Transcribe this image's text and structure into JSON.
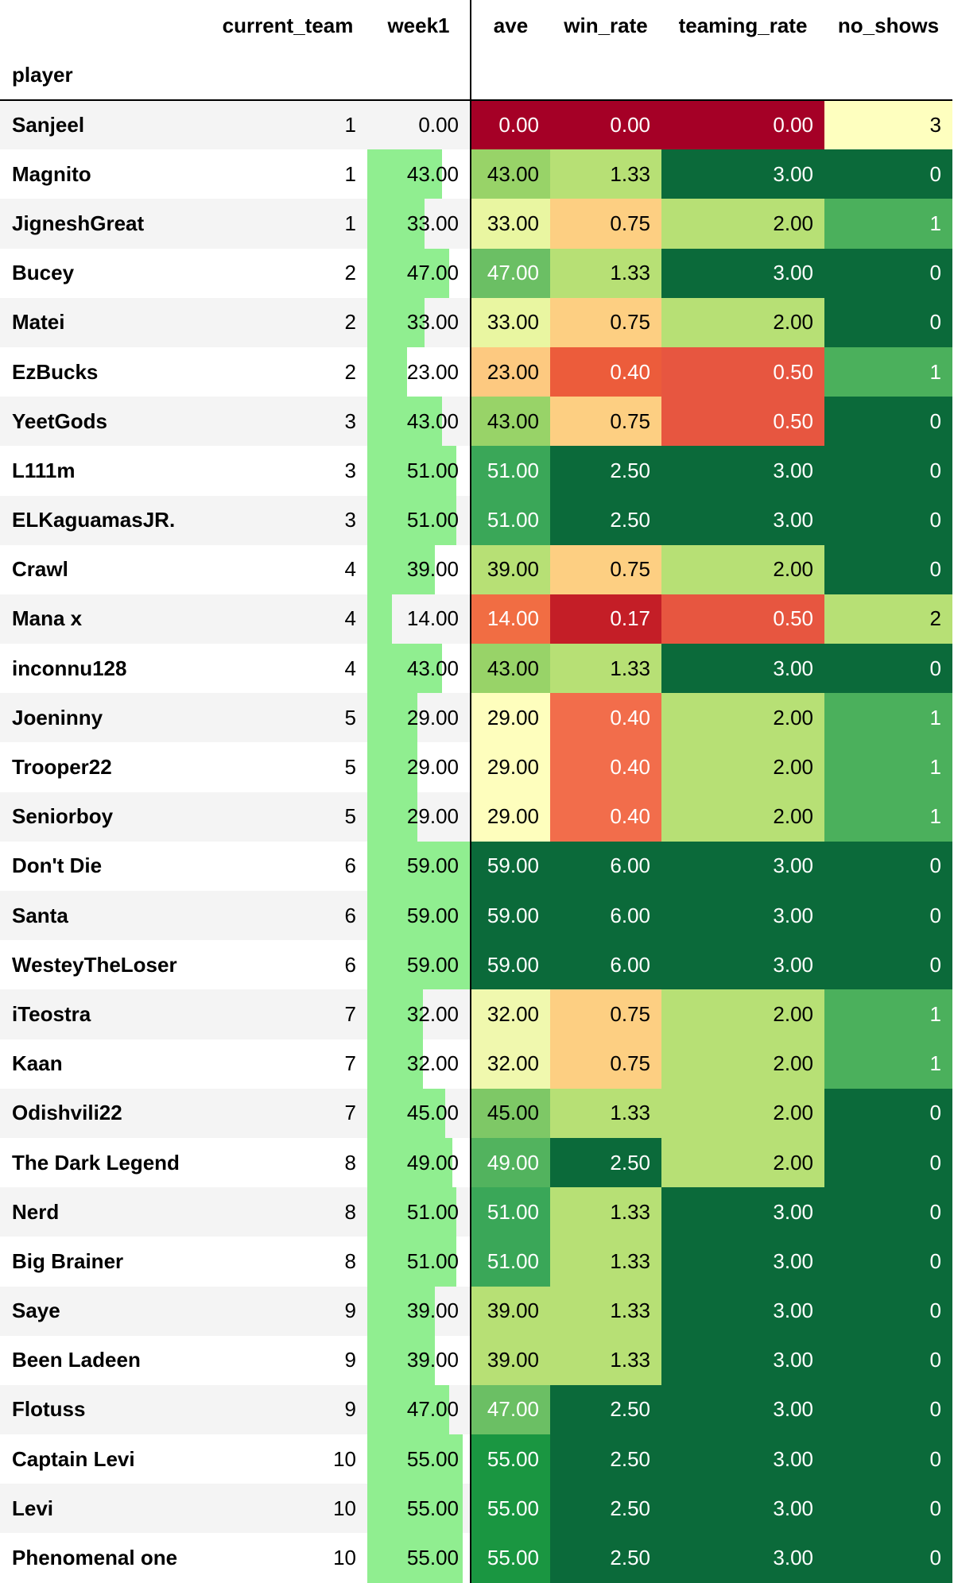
{
  "headers": {
    "index_name": "player",
    "current_team": "current_team",
    "week1": "week1",
    "ave": "ave",
    "win_rate": "win_rate",
    "teaming_rate": "teaming_rate",
    "no_shows": "no_shows"
  },
  "bar_color": "#90ee90",
  "week1_max": 59,
  "rows": [
    {
      "player": "Sanjeel",
      "current_team": "1",
      "week1": "0.00",
      "ave": "0.00",
      "win_rate": "0.00",
      "teaming_rate": "0.00",
      "no_shows": "3",
      "w": 0,
      "c_ave": "#a50026",
      "c_win": "#a50026",
      "c_team": "#a50026",
      "c_ns": "#feffbf",
      "t_ave": "#ffffff",
      "t_win": "#ffffff",
      "t_team": "#ffffff",
      "t_ns": "#000000"
    },
    {
      "player": "Magnito",
      "current_team": "1",
      "week1": "43.00",
      "ave": "43.00",
      "win_rate": "1.33",
      "teaming_rate": "3.00",
      "no_shows": "0",
      "w": 43,
      "c_ave": "#98d368",
      "c_win": "#b7e075",
      "c_team": "#0b6a3a",
      "c_ns": "#0b6a3a",
      "t_ave": "#000000",
      "t_win": "#000000",
      "t_team": "#ffffff",
      "t_ns": "#ffffff"
    },
    {
      "player": "JigneshGreat",
      "current_team": "1",
      "week1": "33.00",
      "ave": "33.00",
      "win_rate": "0.75",
      "teaming_rate": "2.00",
      "no_shows": "1",
      "w": 33,
      "c_ave": "#e9f6a1",
      "c_win": "#fdcf82",
      "c_team": "#b7e075",
      "c_ns": "#4bb05c",
      "t_ave": "#000000",
      "t_win": "#000000",
      "t_team": "#000000",
      "t_ns": "#ffffff"
    },
    {
      "player": "Bucey",
      "current_team": "2",
      "week1": "47.00",
      "ave": "47.00",
      "win_rate": "1.33",
      "teaming_rate": "3.00",
      "no_shows": "0",
      "w": 47,
      "c_ave": "#6bbf64",
      "c_win": "#b7e075",
      "c_team": "#0b6a3a",
      "c_ns": "#0b6a3a",
      "t_ave": "#ffffff",
      "t_win": "#000000",
      "t_team": "#ffffff",
      "t_ns": "#ffffff"
    },
    {
      "player": "Matei",
      "current_team": "2",
      "week1": "33.00",
      "ave": "33.00",
      "win_rate": "0.75",
      "teaming_rate": "2.00",
      "no_shows": "0",
      "w": 33,
      "c_ave": "#e9f6a1",
      "c_win": "#fdcf82",
      "c_team": "#b7e075",
      "c_ns": "#0b6a3a",
      "t_ave": "#000000",
      "t_win": "#000000",
      "t_team": "#000000",
      "t_ns": "#ffffff"
    },
    {
      "player": "EzBucks",
      "current_team": "2",
      "week1": "23.00",
      "ave": "23.00",
      "win_rate": "0.40",
      "teaming_rate": "0.50",
      "no_shows": "1",
      "w": 23,
      "c_ave": "#fdc980",
      "c_win": "#ec5c3b",
      "c_team": "#e75640",
      "c_ns": "#4bb05c",
      "t_ave": "#000000",
      "t_win": "#ffffff",
      "t_team": "#ffffff",
      "t_ns": "#ffffff"
    },
    {
      "player": "YeetGods",
      "current_team": "3",
      "week1": "43.00",
      "ave": "43.00",
      "win_rate": "0.75",
      "teaming_rate": "0.50",
      "no_shows": "0",
      "w": 43,
      "c_ave": "#98d368",
      "c_win": "#fdcf82",
      "c_team": "#e75640",
      "c_ns": "#0b6a3a",
      "t_ave": "#000000",
      "t_win": "#000000",
      "t_team": "#ffffff",
      "t_ns": "#ffffff"
    },
    {
      "player": "L111m",
      "current_team": "3",
      "week1": "51.00",
      "ave": "51.00",
      "win_rate": "2.50",
      "teaming_rate": "3.00",
      "no_shows": "0",
      "w": 51,
      "c_ave": "#3aa758",
      "c_win": "#0b6a3a",
      "c_team": "#0b6a3a",
      "c_ns": "#0b6a3a",
      "t_ave": "#ffffff",
      "t_win": "#ffffff",
      "t_team": "#ffffff",
      "t_ns": "#ffffff"
    },
    {
      "player": "ELKaguamasJR.",
      "current_team": "3",
      "week1": "51.00",
      "ave": "51.00",
      "win_rate": "2.50",
      "teaming_rate": "3.00",
      "no_shows": "0",
      "w": 51,
      "c_ave": "#3aa758",
      "c_win": "#0b6a3a",
      "c_team": "#0b6a3a",
      "c_ns": "#0b6a3a",
      "t_ave": "#ffffff",
      "t_win": "#ffffff",
      "t_team": "#ffffff",
      "t_ns": "#ffffff"
    },
    {
      "player": "Crawl",
      "current_team": "4",
      "week1": "39.00",
      "ave": "39.00",
      "win_rate": "0.75",
      "teaming_rate": "2.00",
      "no_shows": "0",
      "w": 39,
      "c_ave": "#b7e075",
      "c_win": "#fdcf82",
      "c_team": "#b7e075",
      "c_ns": "#0b6a3a",
      "t_ave": "#000000",
      "t_win": "#000000",
      "t_team": "#000000",
      "t_ns": "#ffffff"
    },
    {
      "player": "Mana x",
      "current_team": "4",
      "week1": "14.00",
      "ave": "14.00",
      "win_rate": "0.17",
      "teaming_rate": "0.50",
      "no_shows": "2",
      "w": 14,
      "c_ave": "#f16d43",
      "c_win": "#c41e27",
      "c_team": "#e75640",
      "c_ns": "#b7e075",
      "t_ave": "#ffffff",
      "t_win": "#ffffff",
      "t_team": "#ffffff",
      "t_ns": "#000000"
    },
    {
      "player": "inconnu128",
      "current_team": "4",
      "week1": "43.00",
      "ave": "43.00",
      "win_rate": "1.33",
      "teaming_rate": "3.00",
      "no_shows": "0",
      "w": 43,
      "c_ave": "#98d368",
      "c_win": "#b7e075",
      "c_team": "#0b6a3a",
      "c_ns": "#0b6a3a",
      "t_ave": "#000000",
      "t_win": "#000000",
      "t_team": "#ffffff",
      "t_ns": "#ffffff"
    },
    {
      "player": "Joeninny",
      "current_team": "5",
      "week1": "29.00",
      "ave": "29.00",
      "win_rate": "0.40",
      "teaming_rate": "2.00",
      "no_shows": "1",
      "w": 29,
      "c_ave": "#fefebd",
      "c_win": "#f26d4b",
      "c_team": "#b7e075",
      "c_ns": "#4bb05c",
      "t_ave": "#000000",
      "t_win": "#ffffff",
      "t_team": "#000000",
      "t_ns": "#ffffff"
    },
    {
      "player": "Trooper22",
      "current_team": "5",
      "week1": "29.00",
      "ave": "29.00",
      "win_rate": "0.40",
      "teaming_rate": "2.00",
      "no_shows": "1",
      "w": 29,
      "c_ave": "#fefebd",
      "c_win": "#f26d4b",
      "c_team": "#b7e075",
      "c_ns": "#4bb05c",
      "t_ave": "#000000",
      "t_win": "#ffffff",
      "t_team": "#000000",
      "t_ns": "#ffffff"
    },
    {
      "player": "Seniorboy",
      "current_team": "5",
      "week1": "29.00",
      "ave": "29.00",
      "win_rate": "0.40",
      "teaming_rate": "2.00",
      "no_shows": "1",
      "w": 29,
      "c_ave": "#fefebd",
      "c_win": "#f26d4b",
      "c_team": "#b7e075",
      "c_ns": "#4bb05c",
      "t_ave": "#000000",
      "t_win": "#ffffff",
      "t_team": "#000000",
      "t_ns": "#ffffff"
    },
    {
      "player": "Don't Die",
      "current_team": "6",
      "week1": "59.00",
      "ave": "59.00",
      "win_rate": "6.00",
      "teaming_rate": "3.00",
      "no_shows": "0",
      "w": 59,
      "c_ave": "#0b6a3a",
      "c_win": "#0b6a3a",
      "c_team": "#0b6a3a",
      "c_ns": "#0b6a3a",
      "t_ave": "#ffffff",
      "t_win": "#ffffff",
      "t_team": "#ffffff",
      "t_ns": "#ffffff"
    },
    {
      "player": "Santa",
      "current_team": "6",
      "week1": "59.00",
      "ave": "59.00",
      "win_rate": "6.00",
      "teaming_rate": "3.00",
      "no_shows": "0",
      "w": 59,
      "c_ave": "#0b6a3a",
      "c_win": "#0b6a3a",
      "c_team": "#0b6a3a",
      "c_ns": "#0b6a3a",
      "t_ave": "#ffffff",
      "t_win": "#ffffff",
      "t_team": "#ffffff",
      "t_ns": "#ffffff"
    },
    {
      "player": "WesteyTheLoser",
      "current_team": "6",
      "week1": "59.00",
      "ave": "59.00",
      "win_rate": "6.00",
      "teaming_rate": "3.00",
      "no_shows": "0",
      "w": 59,
      "c_ave": "#0b6a3a",
      "c_win": "#0b6a3a",
      "c_team": "#0b6a3a",
      "c_ns": "#0b6a3a",
      "t_ave": "#ffffff",
      "t_win": "#ffffff",
      "t_team": "#ffffff",
      "t_ns": "#ffffff"
    },
    {
      "player": "iTeostra",
      "current_team": "7",
      "week1": "32.00",
      "ave": "32.00",
      "win_rate": "0.75",
      "teaming_rate": "2.00",
      "no_shows": "1",
      "w": 32,
      "c_ave": "#f0f8ae",
      "c_win": "#fdcf82",
      "c_team": "#b7e075",
      "c_ns": "#4bb05c",
      "t_ave": "#000000",
      "t_win": "#000000",
      "t_team": "#000000",
      "t_ns": "#ffffff"
    },
    {
      "player": "Kaan",
      "current_team": "7",
      "week1": "32.00",
      "ave": "32.00",
      "win_rate": "0.75",
      "teaming_rate": "2.00",
      "no_shows": "1",
      "w": 32,
      "c_ave": "#f0f8ae",
      "c_win": "#fdcf82",
      "c_team": "#b7e075",
      "c_ns": "#4bb05c",
      "t_ave": "#000000",
      "t_win": "#000000",
      "t_team": "#000000",
      "t_ns": "#ffffff"
    },
    {
      "player": "Odishvili22",
      "current_team": "7",
      "week1": "45.00",
      "ave": "45.00",
      "win_rate": "1.33",
      "teaming_rate": "2.00",
      "no_shows": "0",
      "w": 45,
      "c_ave": "#7ec866",
      "c_win": "#b7e075",
      "c_team": "#b7e075",
      "c_ns": "#0b6a3a",
      "t_ave": "#000000",
      "t_win": "#000000",
      "t_team": "#000000",
      "t_ns": "#ffffff"
    },
    {
      "player": "The Dark Legend",
      "current_team": "8",
      "week1": "49.00",
      "ave": "49.00",
      "win_rate": "2.50",
      "teaming_rate": "2.00",
      "no_shows": "0",
      "w": 49,
      "c_ave": "#52b35e",
      "c_win": "#0b6a3a",
      "c_team": "#b7e075",
      "c_ns": "#0b6a3a",
      "t_ave": "#ffffff",
      "t_win": "#ffffff",
      "t_team": "#000000",
      "t_ns": "#ffffff"
    },
    {
      "player": "Nerd",
      "current_team": "8",
      "week1": "51.00",
      "ave": "51.00",
      "win_rate": "1.33",
      "teaming_rate": "3.00",
      "no_shows": "0",
      "w": 51,
      "c_ave": "#3aa758",
      "c_win": "#b7e075",
      "c_team": "#0b6a3a",
      "c_ns": "#0b6a3a",
      "t_ave": "#ffffff",
      "t_win": "#000000",
      "t_team": "#ffffff",
      "t_ns": "#ffffff"
    },
    {
      "player": "Big Brainer",
      "current_team": "8",
      "week1": "51.00",
      "ave": "51.00",
      "win_rate": "1.33",
      "teaming_rate": "3.00",
      "no_shows": "0",
      "w": 51,
      "c_ave": "#3aa758",
      "c_win": "#b7e075",
      "c_team": "#0b6a3a",
      "c_ns": "#0b6a3a",
      "t_ave": "#ffffff",
      "t_win": "#000000",
      "t_team": "#ffffff",
      "t_ns": "#ffffff"
    },
    {
      "player": "Saye",
      "current_team": "9",
      "week1": "39.00",
      "ave": "39.00",
      "win_rate": "1.33",
      "teaming_rate": "3.00",
      "no_shows": "0",
      "w": 39,
      "c_ave": "#b7e075",
      "c_win": "#b7e075",
      "c_team": "#0b6a3a",
      "c_ns": "#0b6a3a",
      "t_ave": "#000000",
      "t_win": "#000000",
      "t_team": "#ffffff",
      "t_ns": "#ffffff"
    },
    {
      "player": "Been Ladeen",
      "current_team": "9",
      "week1": "39.00",
      "ave": "39.00",
      "win_rate": "1.33",
      "teaming_rate": "3.00",
      "no_shows": "0",
      "w": 39,
      "c_ave": "#b7e075",
      "c_win": "#b7e075",
      "c_team": "#0b6a3a",
      "c_ns": "#0b6a3a",
      "t_ave": "#000000",
      "t_win": "#000000",
      "t_team": "#ffffff",
      "t_ns": "#ffffff"
    },
    {
      "player": "Flotuss",
      "current_team": "9",
      "week1": "47.00",
      "ave": "47.00",
      "win_rate": "2.50",
      "teaming_rate": "3.00",
      "no_shows": "0",
      "w": 47,
      "c_ave": "#6bbf64",
      "c_win": "#0b6a3a",
      "c_team": "#0b6a3a",
      "c_ns": "#0b6a3a",
      "t_ave": "#ffffff",
      "t_win": "#ffffff",
      "t_team": "#ffffff",
      "t_ns": "#ffffff"
    },
    {
      "player": "Captain Levi",
      "current_team": "10",
      "week1": "55.00",
      "ave": "55.00",
      "win_rate": "2.50",
      "teaming_rate": "3.00",
      "no_shows": "0",
      "w": 55,
      "c_ave": "#1a9641",
      "c_win": "#0b6a3a",
      "c_team": "#0b6a3a",
      "c_ns": "#0b6a3a",
      "t_ave": "#ffffff",
      "t_win": "#ffffff",
      "t_team": "#ffffff",
      "t_ns": "#ffffff"
    },
    {
      "player": "Levi",
      "current_team": "10",
      "week1": "55.00",
      "ave": "55.00",
      "win_rate": "2.50",
      "teaming_rate": "3.00",
      "no_shows": "0",
      "w": 55,
      "c_ave": "#1a9641",
      "c_win": "#0b6a3a",
      "c_team": "#0b6a3a",
      "c_ns": "#0b6a3a",
      "t_ave": "#ffffff",
      "t_win": "#ffffff",
      "t_team": "#ffffff",
      "t_ns": "#ffffff"
    },
    {
      "player": "Phenomenal one",
      "current_team": "10",
      "week1": "55.00",
      "ave": "55.00",
      "win_rate": "2.50",
      "teaming_rate": "3.00",
      "no_shows": "0",
      "w": 55,
      "c_ave": "#1a9641",
      "c_win": "#0b6a3a",
      "c_team": "#0b6a3a",
      "c_ns": "#0b6a3a",
      "t_ave": "#ffffff",
      "t_win": "#ffffff",
      "t_team": "#ffffff",
      "t_ns": "#ffffff"
    }
  ]
}
